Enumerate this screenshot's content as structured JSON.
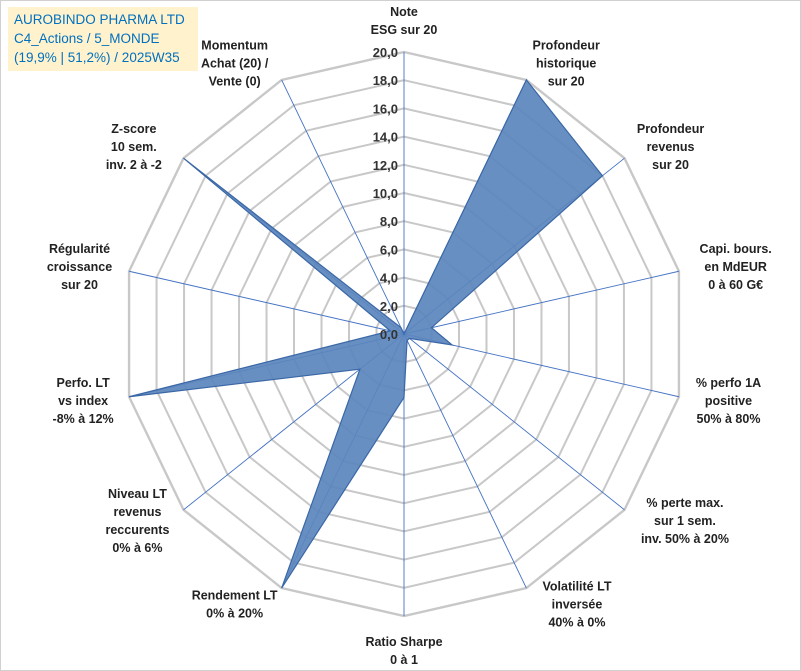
{
  "header": {
    "company": "AUROBINDO PHARMA LTD",
    "portfolio": "C4_Actions / 5_MONDE",
    "meta": "(19,9% | 51,2%) / 2025W35"
  },
  "chart_data": {
    "type": "radar",
    "rmin": 0,
    "rmax": 20,
    "ticks": [
      "0,0",
      "2,0",
      "4,0",
      "6,0",
      "8,0",
      "10,0",
      "12,0",
      "14,0",
      "16,0",
      "18,0",
      "20,0"
    ],
    "grid": true,
    "colors": {
      "fill": "#5b86bd",
      "stroke": "#3a67a6",
      "grid": "#c8c8c8",
      "spoke": "#4472c4"
    },
    "axes": [
      {
        "label": [
          "Note",
          "ESG sur 20"
        ],
        "value": 0.0
      },
      {
        "label": [
          "Profondeur",
          "historique",
          "sur 20"
        ],
        "value": 20.0
      },
      {
        "label": [
          "Profondeur",
          "revenus",
          "sur 20"
        ],
        "value": 18.0
      },
      {
        "label": [
          "Capi. bours.",
          "en MdEUR",
          "0 à 60 G€"
        ],
        "value": 2.0
      },
      {
        "label": [
          "% perfo 1A",
          "positive",
          "50% à 80%"
        ],
        "value": 3.5
      },
      {
        "label": [
          "% perte max.",
          "sur 1 sem.",
          "inv. 50% à 20%"
        ],
        "value": 0.5
      },
      {
        "label": [
          "Volatilité LT",
          "inversée",
          "40% à 0%"
        ],
        "value": 0.5
      },
      {
        "label": [
          "Ratio Sharpe",
          "0 à 1"
        ],
        "value": 4.5
      },
      {
        "label": [
          "Rendement LT",
          "0% à 20%"
        ],
        "value": 20.0
      },
      {
        "label": [
          "Niveau LT",
          "revenus",
          "reccurents",
          "0% à 6%"
        ],
        "value": 4.0
      },
      {
        "label": [
          "Perfo. LT",
          "vs index",
          "-8% à 12%"
        ],
        "value": 20.0
      },
      {
        "label": [
          "Régularité",
          "croissance",
          "sur 20"
        ],
        "value": 1.0
      },
      {
        "label": [
          "Z-score",
          "10 sem.",
          "inv. 2 à -2"
        ],
        "value": 20.0
      },
      {
        "label": [
          "Momentum",
          "Achat (20) /",
          "Vente (0)"
        ],
        "value": 0.5
      }
    ]
  }
}
